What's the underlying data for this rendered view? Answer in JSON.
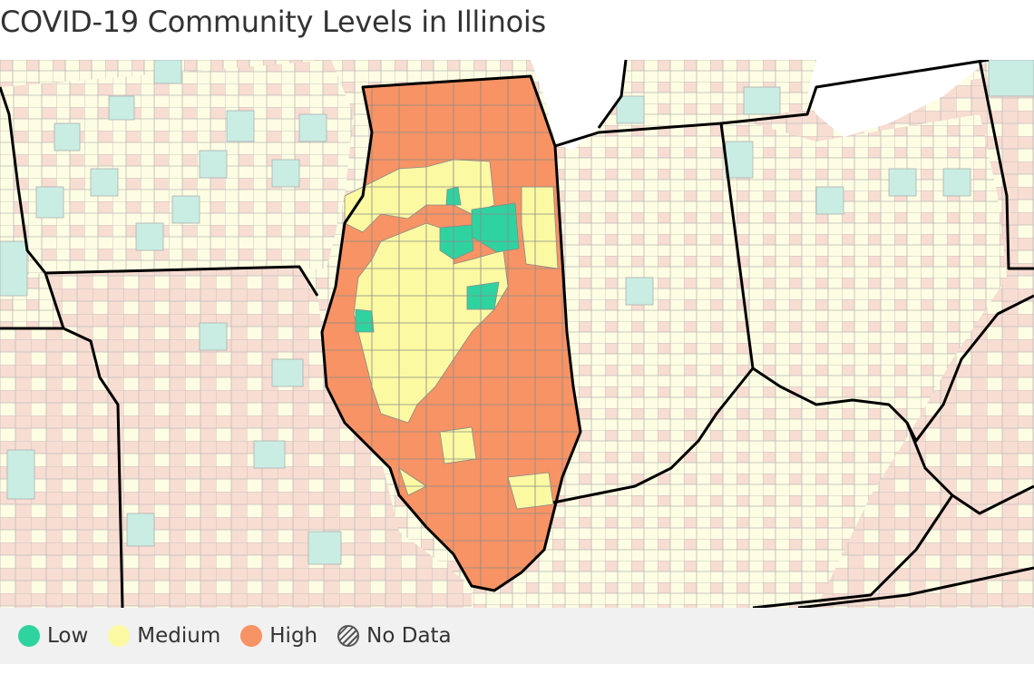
{
  "title": "COVID-19 Community Levels in Illinois",
  "colors": {
    "low": "#2fd3a0",
    "medium": "#fbf9a2",
    "high": "#f79364",
    "other_low": "#c9ede3",
    "other_medium": "#fdfde3",
    "other_high": "#f8ddd2",
    "state_border": "#000000",
    "county_line": "#8a8a8a",
    "lake": "#ffffff"
  },
  "legend": [
    {
      "key": "low",
      "label": "Low",
      "color": "#2fd3a0",
      "icon": "low-level-dot"
    },
    {
      "key": "medium",
      "label": "Medium",
      "color": "#fbf9a2",
      "icon": "medium-level-dot"
    },
    {
      "key": "high",
      "label": "High",
      "color": "#f79364",
      "icon": "high-level-dot"
    },
    {
      "key": "nodata",
      "label": "No Data",
      "color": "hatched",
      "icon": "no-data-hatch-icon"
    }
  ]
}
